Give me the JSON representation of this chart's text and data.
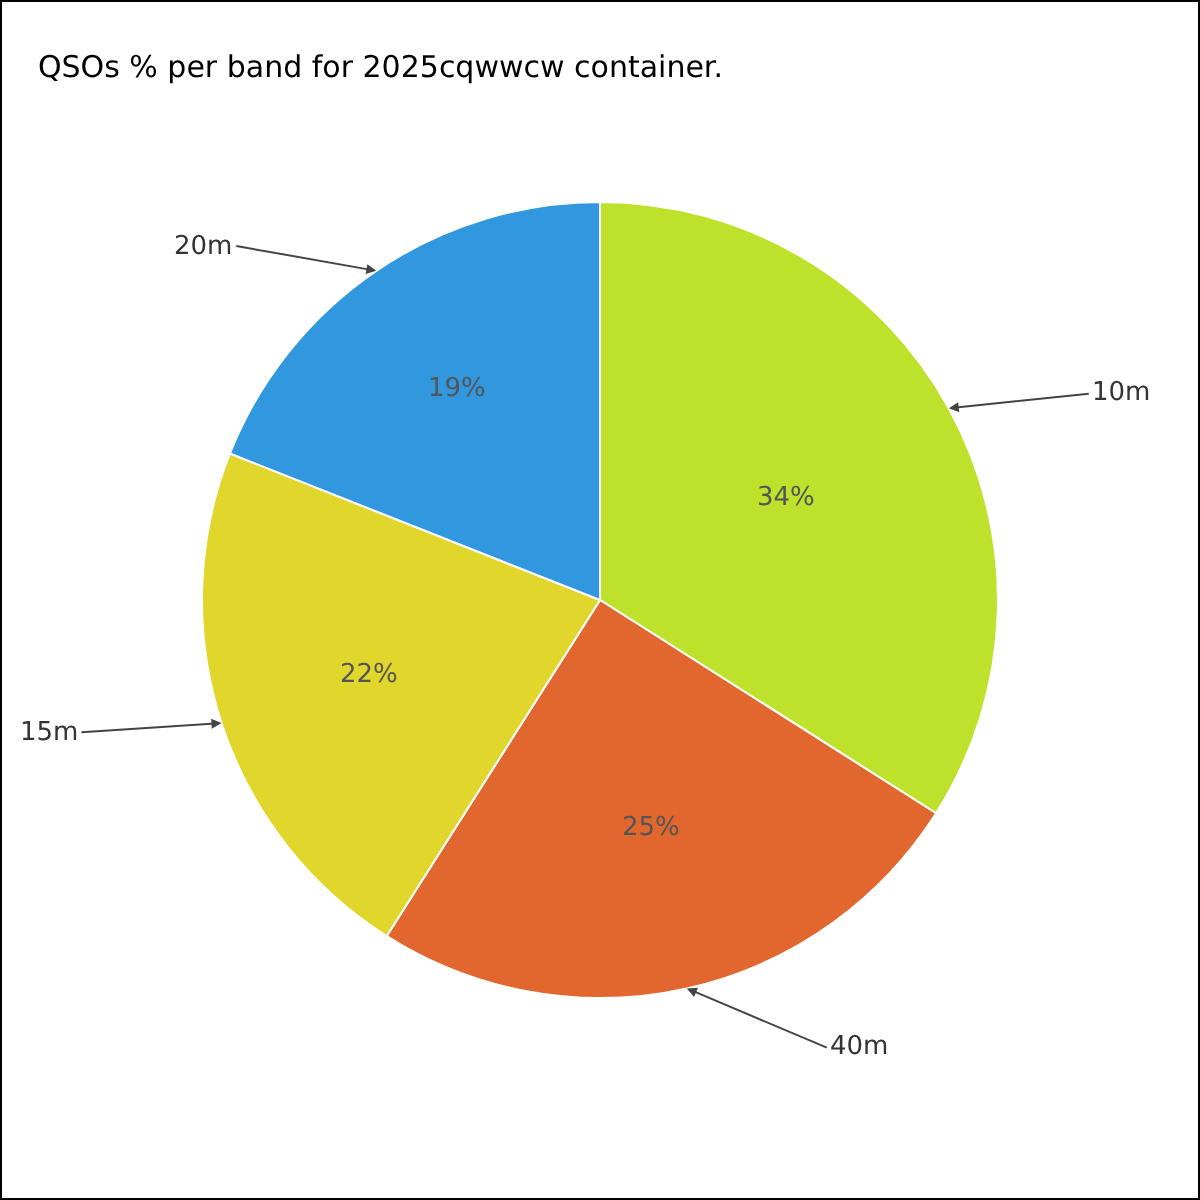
{
  "chart_data": {
    "type": "pie",
    "title": "QSOs % per band for 2025cqwwcw container.",
    "categories": [
      "10m",
      "40m",
      "15m",
      "20m"
    ],
    "values": [
      34,
      25,
      22,
      19
    ],
    "value_labels": [
      "34%",
      "25%",
      "22%",
      "19%"
    ],
    "colors": [
      "#bee22c",
      "#e2672e",
      "#e0d62c",
      "#3198e0"
    ],
    "legend": false
  }
}
